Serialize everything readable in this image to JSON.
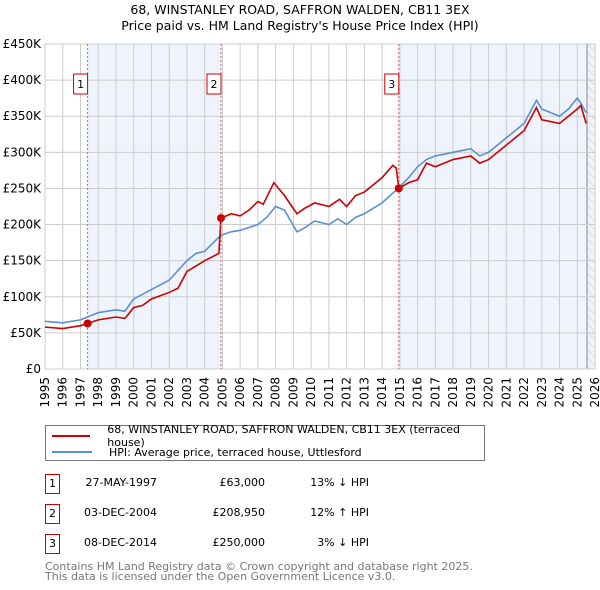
{
  "title": "68, WINSTANLEY ROAD, SAFFRON WALDEN, CB11 3EX",
  "subtitle": "Price paid vs. HM Land Registry's House Price Index (HPI)",
  "colors": {
    "property": "#cc0000",
    "hpi": "#5b8fd1",
    "shade": "#eef3fc"
  },
  "chart_data": {
    "type": "line",
    "title": "68, WINSTANLEY ROAD, SAFFRON WALDEN, CB11 3EX",
    "ylabel": "",
    "xlabel": "",
    "xlim": [
      1995,
      2026
    ],
    "ylim": [
      0,
      450000
    ],
    "ytick_labels": [
      "£0",
      "£50K",
      "£100K",
      "£150K",
      "£200K",
      "£250K",
      "£300K",
      "£350K",
      "£400K",
      "£450K"
    ],
    "ytick_values": [
      0,
      50000,
      100000,
      150000,
      200000,
      250000,
      300000,
      350000,
      400000,
      450000
    ],
    "xtick_labels": [
      "1995",
      "1996",
      "1997",
      "1998",
      "1999",
      "2000",
      "2001",
      "2002",
      "2003",
      "2004",
      "2005",
      "2006",
      "2007",
      "2008",
      "2009",
      "2010",
      "2011",
      "2012",
      "2013",
      "2014",
      "2015",
      "2016",
      "2017",
      "2018",
      "2019",
      "2020",
      "2021",
      "2022",
      "2023",
      "2024",
      "2025",
      "2026"
    ],
    "grid": true,
    "series": [
      {
        "name": "68, WINSTANLEY ROAD, SAFFRON WALDEN, CB11 3EX (terraced house)",
        "color": "#cc0000",
        "x": [
          1995,
          1996,
          1997,
          1997.4,
          1998,
          1999,
          1999.5,
          2000,
          2000.5,
          2001,
          2002,
          2002.5,
          2003,
          2004,
          2004.8,
          2004.92,
          2005.5,
          2006,
          2006.5,
          2007,
          2007.3,
          2007.9,
          2008.5,
          2009.2,
          2009.6,
          2010.2,
          2011,
          2011.6,
          2012,
          2012.5,
          2013,
          2014,
          2014.6,
          2014.8,
          2014.94,
          2015.5,
          2016,
          2016.5,
          2017,
          2018,
          2019,
          2019.5,
          2020,
          2021,
          2022,
          2022.7,
          2023,
          2024,
          2024.5,
          2025,
          2025.2,
          2025.5
        ],
        "y": [
          58000,
          56000,
          60000,
          63000,
          68000,
          72000,
          70000,
          85000,
          88000,
          97000,
          106000,
          112000,
          135000,
          150000,
          160000,
          208950,
          215000,
          212000,
          220000,
          232000,
          228000,
          258000,
          240000,
          215000,
          222000,
          230000,
          225000,
          235000,
          225000,
          240000,
          245000,
          265000,
          282000,
          278000,
          250000,
          258000,
          262000,
          285000,
          280000,
          290000,
          295000,
          285000,
          290000,
          310000,
          330000,
          362000,
          345000,
          340000,
          350000,
          360000,
          365000,
          340000
        ]
      },
      {
        "name": "HPI: Average price, terraced house, Uttlesford",
        "color": "#5b8fd1",
        "x": [
          1995,
          1996,
          1997,
          1997.4,
          1998,
          1999,
          1999.5,
          2000,
          2001,
          2002,
          2003,
          2003.5,
          2004,
          2004.9,
          2005.5,
          2006,
          2007,
          2007.5,
          2008,
          2008.5,
          2009.2,
          2009.6,
          2010.2,
          2011,
          2011.5,
          2012,
          2012.5,
          2013,
          2014,
          2014.9,
          2015.5,
          2016,
          2016.5,
          2017,
          2018,
          2019,
          2019.5,
          2020,
          2021,
          2022,
          2022.7,
          2023,
          2023.5,
          2024,
          2024.5,
          2025,
          2025.2,
          2025.5
        ],
        "y": [
          66000,
          64000,
          68000,
          72000,
          78000,
          82000,
          80000,
          97000,
          110000,
          123000,
          150000,
          160000,
          163000,
          185000,
          190000,
          192000,
          200000,
          210000,
          225000,
          220000,
          190000,
          195000,
          205000,
          200000,
          208000,
          200000,
          210000,
          215000,
          230000,
          250000,
          265000,
          280000,
          290000,
          295000,
          300000,
          305000,
          295000,
          300000,
          320000,
          340000,
          372000,
          360000,
          355000,
          350000,
          360000,
          375000,
          368000,
          355000
        ]
      }
    ],
    "annotations": [
      {
        "label": "1",
        "x": 1997.4,
        "y": 63000
      },
      {
        "label": "2",
        "x": 2004.92,
        "y": 208950
      },
      {
        "label": "3",
        "x": 2014.94,
        "y": 250000
      }
    ],
    "legend_position": "below"
  },
  "transactions": [
    {
      "num": "1",
      "date": "27-MAY-1997",
      "price": "£63,000",
      "hpi": "13% ↓ HPI"
    },
    {
      "num": "2",
      "date": "03-DEC-2004",
      "price": "£208,950",
      "hpi": "12% ↑ HPI"
    },
    {
      "num": "3",
      "date": "08-DEC-2014",
      "price": "£250,000",
      "hpi": "3% ↓ HPI"
    }
  ],
  "footer": [
    "Contains HM Land Registry data © Crown copyright and database right 2025.",
    "This data is licensed under the Open Government Licence v3.0."
  ]
}
